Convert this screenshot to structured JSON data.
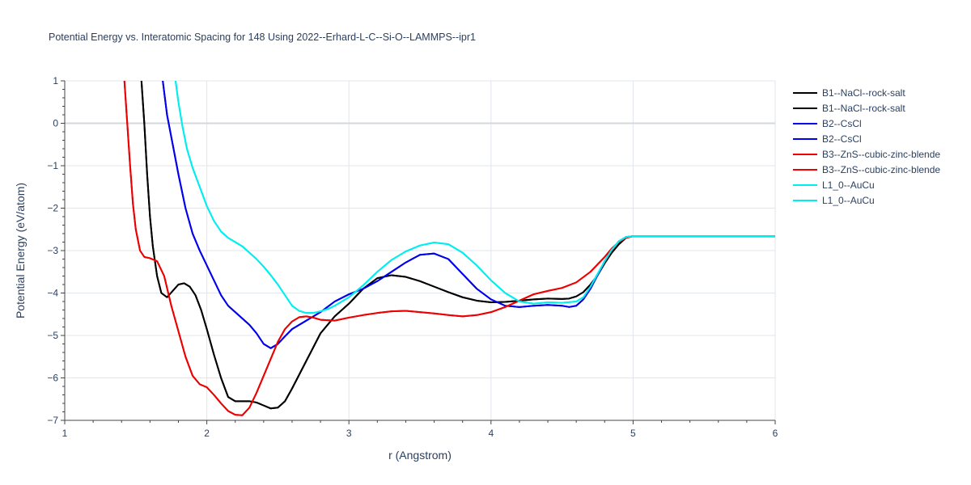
{
  "chart_data": {
    "type": "line",
    "title": "Potential Energy vs. Interatomic Spacing for 148 Using 2022--Erhard-L-C--Si-O--LAMMPS--ipr1",
    "xlabel": "r (Angstrom)",
    "ylabel": "Potential Energy (eV/atom)",
    "xlim": [
      1,
      6
    ],
    "ylim": [
      -7,
      1
    ],
    "xticks": [
      "1",
      "2",
      "3",
      "4",
      "5",
      "6"
    ],
    "yticks": [
      "1",
      "0",
      "−1",
      "−2",
      "−3",
      "−4",
      "−5",
      "−6",
      "−7"
    ],
    "grid": true,
    "legend_position": "top-right",
    "series": [
      {
        "name": "B1--NaCl--rock-salt",
        "color": "#000000",
        "x": [
          1.54,
          1.56,
          1.58,
          1.6,
          1.62,
          1.65,
          1.68,
          1.72,
          1.76,
          1.8,
          1.84,
          1.88,
          1.92,
          1.96,
          2.0,
          2.05,
          2.1,
          2.15,
          2.2,
          2.25,
          2.3,
          2.35,
          2.4,
          2.45,
          2.5,
          2.55,
          2.6,
          2.7,
          2.8,
          2.9,
          3.0,
          3.1,
          3.2,
          3.3,
          3.4,
          3.5,
          3.6,
          3.7,
          3.8,
          3.9,
          4.0,
          4.1,
          4.2,
          4.3,
          4.4,
          4.5,
          4.55,
          4.6,
          4.65,
          4.7,
          4.75,
          4.8,
          4.85,
          4.9,
          4.95,
          5.0,
          5.5,
          6.0
        ],
        "y": [
          1.0,
          0.0,
          -1.2,
          -2.2,
          -2.9,
          -3.6,
          -4.0,
          -4.1,
          -3.95,
          -3.8,
          -3.77,
          -3.85,
          -4.05,
          -4.4,
          -4.85,
          -5.45,
          -6.0,
          -6.45,
          -6.55,
          -6.55,
          -6.55,
          -6.58,
          -6.65,
          -6.72,
          -6.7,
          -6.55,
          -6.25,
          -5.6,
          -4.95,
          -4.55,
          -4.25,
          -3.9,
          -3.65,
          -3.58,
          -3.62,
          -3.72,
          -3.85,
          -3.98,
          -4.1,
          -4.18,
          -4.22,
          -4.21,
          -4.18,
          -4.15,
          -4.13,
          -4.14,
          -4.13,
          -4.08,
          -3.98,
          -3.8,
          -3.58,
          -3.3,
          -3.05,
          -2.85,
          -2.7,
          -2.66,
          -2.66,
          -2.66
        ]
      },
      {
        "name": "B1--NaCl--rock-salt",
        "color": "#000000",
        "x": [
          1.54,
          1.56,
          1.58,
          1.6,
          1.62,
          1.65,
          1.68,
          1.72,
          1.76,
          1.8,
          1.84,
          1.88,
          1.92,
          1.96,
          2.0,
          2.05,
          2.1,
          2.15,
          2.2,
          2.25,
          2.3,
          2.35,
          2.4,
          2.45,
          2.5,
          2.55,
          2.6,
          2.7,
          2.8,
          2.9,
          3.0,
          3.1,
          3.2,
          3.3,
          3.4,
          3.5,
          3.6,
          3.7,
          3.8,
          3.9,
          4.0,
          4.1,
          4.2,
          4.3,
          4.4,
          4.5,
          4.55,
          4.6,
          4.65,
          4.7,
          4.75,
          4.8,
          4.85,
          4.9,
          4.95,
          5.0,
          5.5,
          6.0
        ],
        "y": [
          1.0,
          0.0,
          -1.2,
          -2.2,
          -2.9,
          -3.6,
          -4.0,
          -4.1,
          -3.95,
          -3.8,
          -3.77,
          -3.85,
          -4.05,
          -4.4,
          -4.85,
          -5.45,
          -6.0,
          -6.45,
          -6.55,
          -6.55,
          -6.55,
          -6.58,
          -6.65,
          -6.72,
          -6.7,
          -6.55,
          -6.25,
          -5.6,
          -4.95,
          -4.55,
          -4.25,
          -3.9,
          -3.65,
          -3.58,
          -3.62,
          -3.72,
          -3.85,
          -3.98,
          -4.1,
          -4.18,
          -4.22,
          -4.21,
          -4.18,
          -4.15,
          -4.13,
          -4.14,
          -4.13,
          -4.08,
          -3.98,
          -3.8,
          -3.58,
          -3.3,
          -3.05,
          -2.85,
          -2.7,
          -2.66,
          -2.66,
          -2.66
        ]
      },
      {
        "name": "B2--CsCl",
        "color": "#0000ee",
        "x": [
          1.69,
          1.72,
          1.76,
          1.8,
          1.85,
          1.9,
          1.95,
          2.0,
          2.05,
          2.1,
          2.15,
          2.2,
          2.25,
          2.3,
          2.35,
          2.4,
          2.45,
          2.5,
          2.55,
          2.6,
          2.7,
          2.8,
          2.9,
          3.0,
          3.1,
          3.2,
          3.3,
          3.4,
          3.5,
          3.6,
          3.7,
          3.8,
          3.9,
          4.0,
          4.1,
          4.2,
          4.3,
          4.4,
          4.5,
          4.55,
          4.6,
          4.65,
          4.7,
          4.75,
          4.8,
          4.85,
          4.9,
          4.95,
          5.0,
          5.5,
          6.0
        ],
        "y": [
          1.0,
          0.2,
          -0.5,
          -1.2,
          -2.0,
          -2.6,
          -3.0,
          -3.35,
          -3.7,
          -4.05,
          -4.3,
          -4.45,
          -4.6,
          -4.75,
          -4.95,
          -5.2,
          -5.3,
          -5.2,
          -5.02,
          -4.85,
          -4.65,
          -4.45,
          -4.2,
          -4.03,
          -3.9,
          -3.72,
          -3.5,
          -3.28,
          -3.1,
          -3.07,
          -3.2,
          -3.55,
          -3.9,
          -4.15,
          -4.3,
          -4.33,
          -4.3,
          -4.28,
          -4.3,
          -4.33,
          -4.3,
          -4.15,
          -3.9,
          -3.58,
          -3.25,
          -2.98,
          -2.78,
          -2.68,
          -2.66,
          -2.66,
          -2.66
        ]
      },
      {
        "name": "B2--CsCl",
        "color": "#0000ee",
        "x": [
          1.69,
          1.72,
          1.76,
          1.8,
          1.85,
          1.9,
          1.95,
          2.0,
          2.05,
          2.1,
          2.15,
          2.2,
          2.25,
          2.3,
          2.35,
          2.4,
          2.45,
          2.5,
          2.55,
          2.6,
          2.7,
          2.8,
          2.9,
          3.0,
          3.1,
          3.2,
          3.3,
          3.4,
          3.5,
          3.6,
          3.7,
          3.8,
          3.9,
          4.0,
          4.1,
          4.2,
          4.3,
          4.4,
          4.5,
          4.55,
          4.6,
          4.65,
          4.7,
          4.75,
          4.8,
          4.85,
          4.9,
          4.95,
          5.0,
          5.5,
          6.0
        ],
        "y": [
          1.0,
          0.2,
          -0.5,
          -1.2,
          -2.0,
          -2.6,
          -3.0,
          -3.35,
          -3.7,
          -4.05,
          -4.3,
          -4.45,
          -4.6,
          -4.75,
          -4.95,
          -5.2,
          -5.3,
          -5.2,
          -5.02,
          -4.85,
          -4.65,
          -4.45,
          -4.2,
          -4.03,
          -3.9,
          -3.72,
          -3.5,
          -3.28,
          -3.1,
          -3.07,
          -3.2,
          -3.55,
          -3.9,
          -4.15,
          -4.3,
          -4.33,
          -4.3,
          -4.28,
          -4.3,
          -4.33,
          -4.3,
          -4.15,
          -3.9,
          -3.58,
          -3.25,
          -2.98,
          -2.78,
          -2.68,
          -2.66,
          -2.66,
          -2.66
        ]
      },
      {
        "name": "B3--ZnS--cubic-zinc-blende",
        "color": "#ee0000",
        "x": [
          1.42,
          1.44,
          1.46,
          1.48,
          1.5,
          1.53,
          1.56,
          1.6,
          1.65,
          1.7,
          1.75,
          1.8,
          1.85,
          1.9,
          1.95,
          2.0,
          2.05,
          2.1,
          2.15,
          2.2,
          2.25,
          2.3,
          2.35,
          2.4,
          2.45,
          2.5,
          2.55,
          2.6,
          2.65,
          2.7,
          2.75,
          2.8,
          2.9,
          3.0,
          3.1,
          3.2,
          3.3,
          3.4,
          3.5,
          3.6,
          3.7,
          3.8,
          3.9,
          4.0,
          4.1,
          4.2,
          4.3,
          4.4,
          4.5,
          4.6,
          4.7,
          4.8,
          4.85,
          4.9,
          4.95,
          5.0,
          5.5,
          6.0
        ],
        "y": [
          1.0,
          0.0,
          -1.0,
          -1.9,
          -2.5,
          -3.0,
          -3.15,
          -3.18,
          -3.25,
          -3.6,
          -4.3,
          -4.9,
          -5.5,
          -5.95,
          -6.15,
          -6.22,
          -6.4,
          -6.6,
          -6.78,
          -6.87,
          -6.88,
          -6.7,
          -6.35,
          -5.95,
          -5.55,
          -5.15,
          -4.85,
          -4.67,
          -4.57,
          -4.55,
          -4.58,
          -4.63,
          -4.65,
          -4.58,
          -4.52,
          -4.47,
          -4.43,
          -4.42,
          -4.45,
          -4.48,
          -4.52,
          -4.55,
          -4.52,
          -4.45,
          -4.33,
          -4.18,
          -4.03,
          -3.95,
          -3.88,
          -3.75,
          -3.5,
          -3.15,
          -2.95,
          -2.8,
          -2.7,
          -2.66,
          -2.66,
          -2.66
        ]
      },
      {
        "name": "B3--ZnS--cubic-zinc-blende",
        "color": "#ee0000",
        "x": [
          1.42,
          1.44,
          1.46,
          1.48,
          1.5,
          1.53,
          1.56,
          1.6,
          1.65,
          1.7,
          1.75,
          1.8,
          1.85,
          1.9,
          1.95,
          2.0,
          2.05,
          2.1,
          2.15,
          2.2,
          2.25,
          2.3,
          2.35,
          2.4,
          2.45,
          2.5,
          2.55,
          2.6,
          2.65,
          2.7,
          2.75,
          2.8,
          2.9,
          3.0,
          3.1,
          3.2,
          3.3,
          3.4,
          3.5,
          3.6,
          3.7,
          3.8,
          3.9,
          4.0,
          4.1,
          4.2,
          4.3,
          4.4,
          4.5,
          4.6,
          4.7,
          4.8,
          4.85,
          4.9,
          4.95,
          5.0,
          5.5,
          6.0
        ],
        "y": [
          1.0,
          0.0,
          -1.0,
          -1.9,
          -2.5,
          -3.0,
          -3.15,
          -3.18,
          -3.25,
          -3.6,
          -4.3,
          -4.9,
          -5.5,
          -5.95,
          -6.15,
          -6.22,
          -6.4,
          -6.6,
          -6.78,
          -6.87,
          -6.88,
          -6.7,
          -6.35,
          -5.95,
          -5.55,
          -5.15,
          -4.85,
          -4.67,
          -4.57,
          -4.55,
          -4.58,
          -4.63,
          -4.65,
          -4.58,
          -4.52,
          -4.47,
          -4.43,
          -4.42,
          -4.45,
          -4.48,
          -4.52,
          -4.55,
          -4.52,
          -4.45,
          -4.33,
          -4.18,
          -4.03,
          -3.95,
          -3.88,
          -3.75,
          -3.5,
          -3.15,
          -2.95,
          -2.8,
          -2.7,
          -2.66,
          -2.66,
          -2.66
        ]
      },
      {
        "name": "L1_0--AuCu",
        "color": "#00eeee",
        "x": [
          1.78,
          1.8,
          1.83,
          1.86,
          1.9,
          1.95,
          2.0,
          2.05,
          2.1,
          2.15,
          2.2,
          2.25,
          2.3,
          2.35,
          2.4,
          2.45,
          2.5,
          2.55,
          2.6,
          2.65,
          2.7,
          2.75,
          2.8,
          2.85,
          2.9,
          3.0,
          3.1,
          3.2,
          3.3,
          3.4,
          3.5,
          3.6,
          3.7,
          3.8,
          3.9,
          4.0,
          4.1,
          4.2,
          4.3,
          4.4,
          4.5,
          4.6,
          4.65,
          4.7,
          4.75,
          4.8,
          4.85,
          4.9,
          4.95,
          5.0,
          5.5,
          6.0
        ],
        "y": [
          1.0,
          0.5,
          -0.1,
          -0.6,
          -1.05,
          -1.5,
          -1.95,
          -2.3,
          -2.55,
          -2.7,
          -2.8,
          -2.9,
          -3.05,
          -3.2,
          -3.38,
          -3.58,
          -3.8,
          -4.05,
          -4.3,
          -4.42,
          -4.47,
          -4.47,
          -4.43,
          -4.38,
          -4.3,
          -4.1,
          -3.82,
          -3.5,
          -3.22,
          -3.02,
          -2.88,
          -2.81,
          -2.85,
          -3.05,
          -3.35,
          -3.7,
          -4.0,
          -4.2,
          -4.25,
          -4.22,
          -4.23,
          -4.2,
          -4.1,
          -3.85,
          -3.55,
          -3.25,
          -2.98,
          -2.78,
          -2.68,
          -2.66,
          -2.66,
          -2.66
        ]
      },
      {
        "name": "L1_0--AuCu",
        "color": "#00eeee",
        "x": [
          1.78,
          1.8,
          1.83,
          1.86,
          1.9,
          1.95,
          2.0,
          2.05,
          2.1,
          2.15,
          2.2,
          2.25,
          2.3,
          2.35,
          2.4,
          2.45,
          2.5,
          2.55,
          2.6,
          2.65,
          2.7,
          2.75,
          2.8,
          2.85,
          2.9,
          3.0,
          3.1,
          3.2,
          3.3,
          3.4,
          3.5,
          3.6,
          3.7,
          3.8,
          3.9,
          4.0,
          4.1,
          4.2,
          4.3,
          4.4,
          4.5,
          4.6,
          4.65,
          4.7,
          4.75,
          4.8,
          4.85,
          4.9,
          4.95,
          5.0,
          5.5,
          6.0
        ],
        "y": [
          1.0,
          0.5,
          -0.1,
          -0.6,
          -1.05,
          -1.5,
          -1.95,
          -2.3,
          -2.55,
          -2.7,
          -2.8,
          -2.9,
          -3.05,
          -3.2,
          -3.38,
          -3.58,
          -3.8,
          -4.05,
          -4.3,
          -4.42,
          -4.47,
          -4.47,
          -4.43,
          -4.38,
          -4.3,
          -4.1,
          -3.82,
          -3.5,
          -3.22,
          -3.02,
          -2.88,
          -2.81,
          -2.85,
          -3.05,
          -3.35,
          -3.7,
          -4.0,
          -4.2,
          -4.25,
          -4.22,
          -4.23,
          -4.2,
          -4.1,
          -3.85,
          -3.55,
          -3.25,
          -2.98,
          -2.78,
          -2.68,
          -2.66,
          -2.66,
          -2.66
        ]
      }
    ]
  }
}
